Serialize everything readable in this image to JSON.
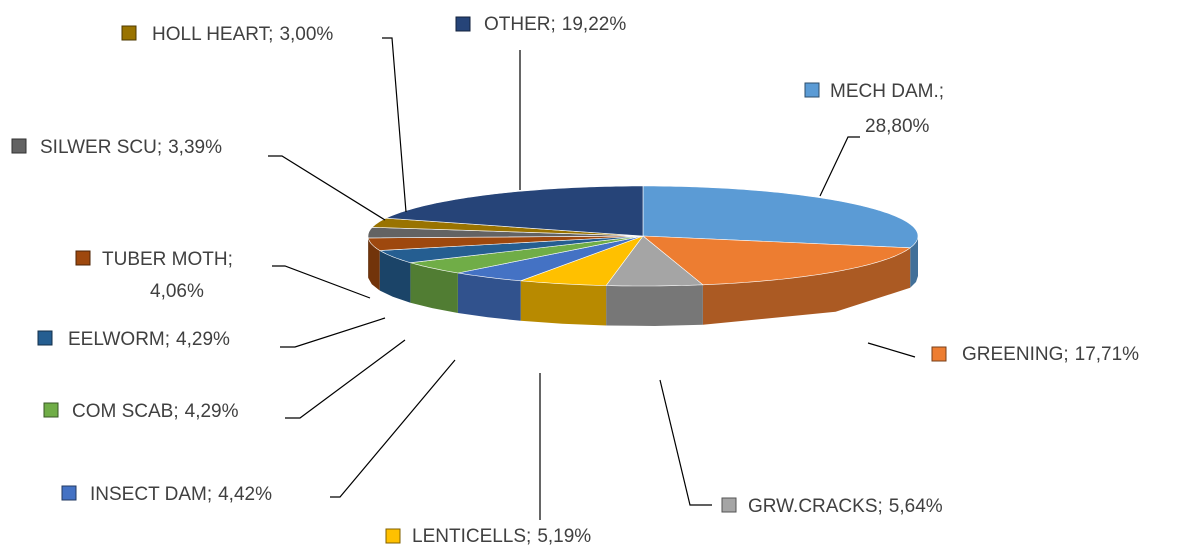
{
  "chart_data": {
    "type": "pie3d",
    "categories": [
      "MECH DAM.;",
      "GREENING;",
      "GRW.CRACKS;",
      "LENTICELLS;",
      "INSECT DAM;",
      "COM SCAB;",
      "EELWORM;",
      "TUBER MOTH;",
      "SILWER SCU;",
      "HOLL HEART;",
      "OTHER;"
    ],
    "values": [
      28.8,
      17.71,
      5.64,
      5.19,
      4.42,
      4.29,
      4.29,
      4.06,
      3.39,
      3.0,
      19.22
    ],
    "value_labels": [
      "28,80%",
      "17,71%",
      "5,64%",
      "5,19%",
      "4,42%",
      "4,29%",
      "4,29%",
      "4,06%",
      "3,39%",
      "3,00%",
      "19,22%"
    ],
    "colors": [
      "#5b9bd5",
      "#ed7d31",
      "#a5a5a5",
      "#ffc000",
      "#4472c4",
      "#70ad47",
      "#255e91",
      "#9e480e",
      "#636363",
      "#997300",
      "#264478"
    ]
  }
}
